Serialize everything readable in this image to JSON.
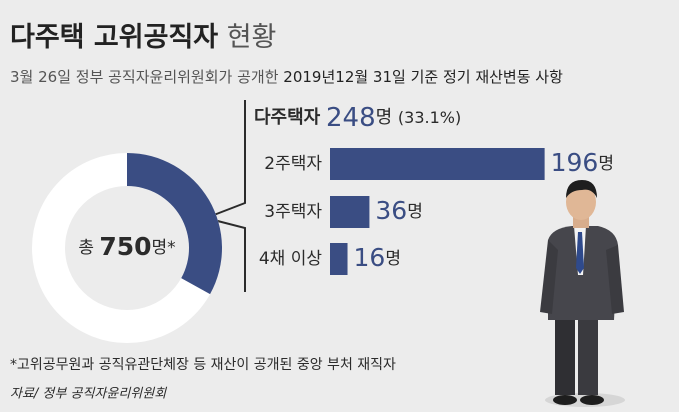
{
  "title": {
    "bold": "다주택 고위공직자",
    "light": "현황"
  },
  "subtitle": {
    "lead": "3월 26일 정부 공직자윤리위원회가 공개한",
    "emphasis": "2019년12월 31일 기준 정기 재산변동 사항"
  },
  "chart_data": [
    {
      "type": "donut",
      "center_prefix": "총",
      "total": 750,
      "center_suffix": "명*",
      "highlight": {
        "name": "다주택자",
        "value": 248,
        "unit": "명",
        "share": 33.1,
        "share_label": "(33.1%)"
      },
      "color": "#3a4d83",
      "rest_color": "#ffffff"
    },
    {
      "type": "bar",
      "orientation": "horizontal",
      "categories": [
        "2주택자",
        "3주택자",
        "4채 이상"
      ],
      "values": [
        196,
        36,
        16
      ],
      "unit": "명",
      "color": "#3a4d83",
      "xlim": [
        0,
        200
      ]
    }
  ],
  "footnote": "*고위공무원과 공직유관단체장 등 재산이 공개된 중앙 부처 재직자",
  "source": "자료/ 정부 공직자윤리위원회"
}
